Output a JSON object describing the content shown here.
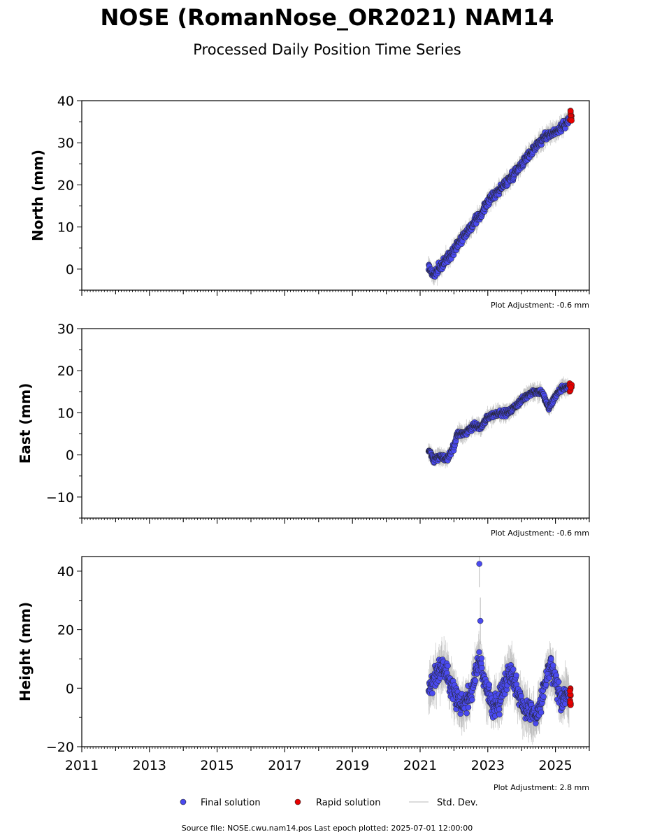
{
  "header": {
    "title": "NOSE (RomanNose_OR2021) NAM14",
    "subtitle": "Processed Daily Position Time Series"
  },
  "legend": {
    "final": "Final solution",
    "rapid": "Rapid solution",
    "std": "Std. Dev."
  },
  "footer": {
    "source": "Source file: NOSE.cwu.nam14.pos  Last epoch plotted: 2025-07-01 12:00:00"
  },
  "colors": {
    "final": "#4a4af0",
    "rapid": "#e80000",
    "std": "#b8b8b8",
    "edge": "#222222"
  },
  "chart_data": [
    {
      "type": "scatter",
      "name": "north",
      "ylabel": "North (mm)",
      "adjustment": "Plot Adjustment: -0.6 mm",
      "xlim": [
        2011,
        2026
      ],
      "ylim": [
        -5,
        40
      ],
      "yticks": [
        0,
        10,
        20,
        30,
        40
      ],
      "ytick_labels": [
        "0",
        "10",
        "20",
        "30",
        "40"
      ],
      "final_path": [
        [
          2021.25,
          0.5
        ],
        [
          2021.4,
          -1.5
        ],
        [
          2021.6,
          0.5
        ],
        [
          2021.9,
          3.5
        ],
        [
          2022.2,
          7
        ],
        [
          2022.5,
          10
        ],
        [
          2022.8,
          13
        ],
        [
          2023.0,
          16
        ],
        [
          2023.3,
          18.5
        ],
        [
          2023.6,
          21
        ],
        [
          2023.9,
          24
        ],
        [
          2024.2,
          27
        ],
        [
          2024.5,
          30
        ],
        [
          2024.8,
          32
        ],
        [
          2025.1,
          33
        ],
        [
          2025.4,
          35.5
        ]
      ],
      "noise": 1.2,
      "std": 1.8,
      "rapid_x": [
        2025.42,
        2025.48
      ],
      "rapid_y": [
        34,
        38
      ]
    },
    {
      "type": "scatter",
      "name": "east",
      "ylabel": "East (mm)",
      "adjustment": "Plot Adjustment: -0.6 mm",
      "xlim": [
        2011,
        2026
      ],
      "ylim": [
        -15,
        30
      ],
      "yticks": [
        -10,
        0,
        10,
        20,
        30
      ],
      "ytick_labels": [
        "−10",
        "0",
        "10",
        "20",
        "30"
      ],
      "final_path": [
        [
          2021.25,
          1
        ],
        [
          2021.4,
          -1
        ],
        [
          2021.6,
          -0.5
        ],
        [
          2021.8,
          -1
        ],
        [
          2022.0,
          2
        ],
        [
          2022.1,
          5
        ],
        [
          2022.3,
          5
        ],
        [
          2022.6,
          7
        ],
        [
          2022.8,
          6.5
        ],
        [
          2023.0,
          9
        ],
        [
          2023.3,
          10
        ],
        [
          2023.6,
          10
        ],
        [
          2023.8,
          11.5
        ],
        [
          2024.0,
          13
        ],
        [
          2024.3,
          15
        ],
        [
          2024.6,
          15
        ],
        [
          2024.8,
          11
        ],
        [
          2025.0,
          14
        ],
        [
          2025.2,
          16
        ],
        [
          2025.4,
          16
        ]
      ],
      "noise": 0.8,
      "std": 1.6,
      "rapid_x": [
        2025.42,
        2025.48
      ],
      "rapid_y": [
        15,
        17
      ]
    },
    {
      "type": "scatter",
      "name": "height",
      "ylabel": "Height (mm)",
      "adjustment": "Plot Adjustment: 2.8 mm",
      "xlim": [
        2011,
        2026
      ],
      "ylim": [
        -20,
        45
      ],
      "yticks": [
        -20,
        0,
        20,
        40
      ],
      "ytick_labels": [
        "−20",
        "0",
        "20",
        "40"
      ],
      "xticks": [
        2011,
        2013,
        2015,
        2017,
        2019,
        2021,
        2023,
        2025
      ],
      "xtick_labels": [
        "2011",
        "2013",
        "2015",
        "2017",
        "2019",
        "2021",
        "2023",
        "2025"
      ],
      "final_path": [
        [
          2021.25,
          0
        ],
        [
          2021.45,
          4
        ],
        [
          2021.65,
          8
        ],
        [
          2021.85,
          4
        ],
        [
          2022.0,
          -2
        ],
        [
          2022.2,
          -6
        ],
        [
          2022.45,
          -4
        ],
        [
          2022.6,
          4
        ],
        [
          2022.75,
          10
        ],
        [
          2022.9,
          2
        ],
        [
          2023.1,
          -5
        ],
        [
          2023.3,
          -6
        ],
        [
          2023.5,
          2
        ],
        [
          2023.7,
          6
        ],
        [
          2023.85,
          0
        ],
        [
          2024.0,
          -5
        ],
        [
          2024.2,
          -8
        ],
        [
          2024.4,
          -10
        ],
        [
          2024.55,
          -6
        ],
        [
          2024.7,
          2
        ],
        [
          2024.85,
          8
        ],
        [
          2025.0,
          2
        ],
        [
          2025.15,
          -4
        ],
        [
          2025.3,
          -2
        ],
        [
          2025.4,
          -4
        ]
      ],
      "noise": 4.5,
      "std": 6,
      "outliers": [
        [
          2022.75,
          42.5
        ],
        [
          2022.78,
          23
        ]
      ],
      "rapid_x": [
        2025.42,
        2025.48
      ],
      "rapid_y": [
        -6,
        0
      ]
    }
  ]
}
